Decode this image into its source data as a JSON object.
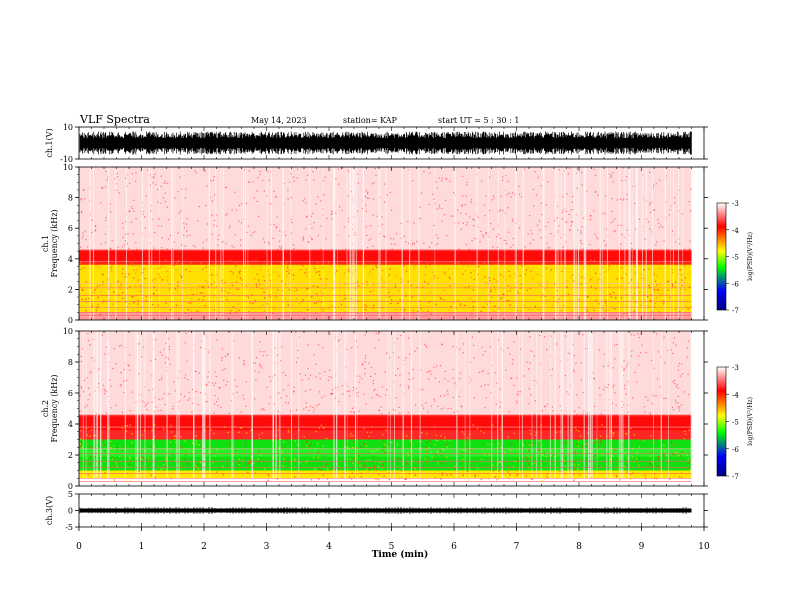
{
  "header": {
    "title": "VLF Spectra",
    "date": "May 14, 2023",
    "station": "station= KAP",
    "start": "start  UT =   5 : 30 : 1"
  },
  "colorbar": {
    "label": "log(PSD)(V²/Hz)",
    "ticks": [
      "-3",
      "-4",
      "-5",
      "-6",
      "-7"
    ],
    "colors": [
      "#ffffff",
      "#ff0000",
      "#ffff00",
      "#00ff00",
      "#0000ff",
      "#000080"
    ]
  },
  "chart_data": [
    {
      "type": "line",
      "panel": "ch1-waveform",
      "ylabel": "ch.1(V)",
      "ylim": [
        -10,
        10
      ],
      "yticks": [
        "10",
        "-10"
      ],
      "x": [
        0,
        9.8
      ],
      "note_visible": "dense oscillating signal between approx -7 and 7 V"
    },
    {
      "type": "heatmap",
      "panel": "ch1-spectrogram",
      "ylabel": "ch.1 Frequency (kHz)",
      "ylim": [
        0,
        10
      ],
      "yticks": [
        "0",
        "2",
        "4",
        "6",
        "8",
        "10"
      ],
      "xlim": [
        0,
        9.8
      ],
      "bands": [
        {
          "from": 0.5,
          "to": 3.7,
          "level": -4.6
        },
        {
          "from": 3.7,
          "to": 4.5,
          "level": -3.8
        },
        {
          "from": 4.5,
          "to": 10,
          "level": -3.2
        }
      ]
    },
    {
      "type": "heatmap",
      "panel": "ch2-spectrogram",
      "ylabel": "ch.2 Frequency (kHz)",
      "ylim": [
        0,
        10
      ],
      "yticks": [
        "0",
        "2",
        "4",
        "6",
        "8",
        "10"
      ],
      "xlim": [
        0,
        9.8
      ],
      "bands": [
        {
          "from": 0.6,
          "to": 3.0,
          "level": -5.0
        },
        {
          "from": 3.0,
          "to": 4.5,
          "level": -4.0
        },
        {
          "from": 4.5,
          "to": 10,
          "level": -3.2
        }
      ]
    },
    {
      "type": "line",
      "panel": "ch3-waveform",
      "ylabel": "ch.3(V)",
      "ylim": [
        -5,
        5
      ],
      "yticks": [
        "5",
        "0",
        "-5"
      ],
      "x": [
        0,
        9.8
      ],
      "note_visible": "narrow band around 0 V"
    }
  ],
  "xaxis": {
    "label": "Time  (min)",
    "ticks": [
      "0",
      "1",
      "2",
      "3",
      "4",
      "5",
      "6",
      "7",
      "8",
      "9",
      "10"
    ],
    "xlim": [
      0,
      10
    ]
  }
}
